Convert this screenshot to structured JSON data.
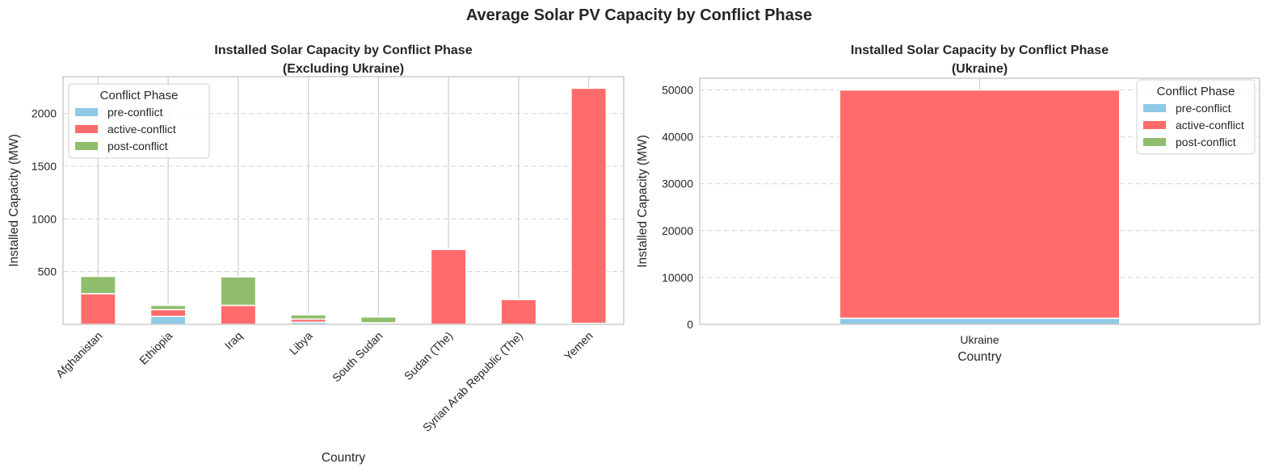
{
  "figure_title": "Average Solar PV Capacity by Conflict Phase",
  "colors": {
    "pre-conflict": "#8ecae6",
    "active-conflict": "#ff6b6b",
    "post-conflict": "#90be6d"
  },
  "chart_data": [
    {
      "type": "bar",
      "stacked": true,
      "title_lines": [
        "Installed Solar Capacity by Conflict Phase",
        "(Excluding Ukraine)"
      ],
      "xlabel": "Country",
      "ylabel": "Installed Capacity (MW)",
      "categories": [
        "Afghanistan",
        "Ethiopia",
        "Iraq",
        "Libya",
        "South Sudan",
        "Sudan (The)",
        "Syrian Arab Republic (The)",
        "Yemen"
      ],
      "series": [
        {
          "name": "pre-conflict",
          "values": [
            0,
            75,
            0,
            20,
            5,
            0,
            0,
            10
          ]
        },
        {
          "name": "active-conflict",
          "values": [
            290,
            65,
            180,
            30,
            10,
            710,
            235,
            2230
          ]
        },
        {
          "name": "post-conflict",
          "values": [
            165,
            40,
            270,
            40,
            55,
            0,
            0,
            0
          ]
        }
      ],
      "ylim": [
        0,
        2350
      ],
      "yticks": [
        500,
        1000,
        1500,
        2000
      ],
      "grid": "y",
      "legend_title": "Conflict Phase",
      "legend_position": "upper-left"
    },
    {
      "type": "bar",
      "stacked": true,
      "title_lines": [
        "Installed Solar Capacity by Conflict Phase",
        "(Ukraine)"
      ],
      "xlabel": "Country",
      "ylabel": "Installed Capacity (MW)",
      "categories": [
        "Ukraine"
      ],
      "series": [
        {
          "name": "pre-conflict",
          "values": [
            1300
          ]
        },
        {
          "name": "active-conflict",
          "values": [
            48700
          ]
        },
        {
          "name": "post-conflict",
          "values": [
            0
          ]
        }
      ],
      "ylim": [
        0,
        52500
      ],
      "yticks": [
        0,
        10000,
        20000,
        30000,
        40000,
        50000
      ],
      "grid": "y",
      "legend_title": "Conflict Phase",
      "legend_position": "upper-right"
    }
  ]
}
